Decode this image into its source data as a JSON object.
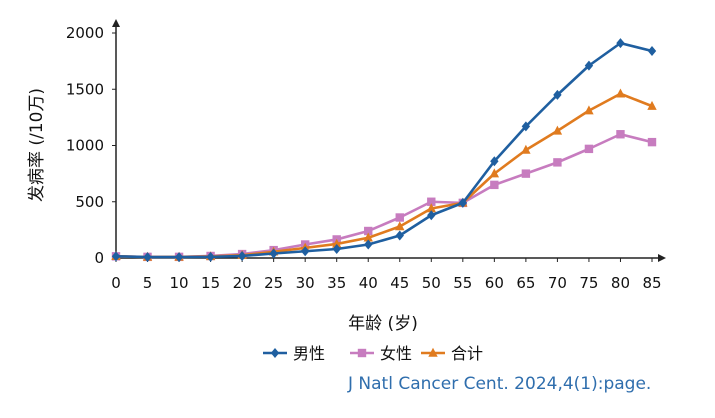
{
  "chart_data": {
    "type": "line",
    "x": [
      0,
      5,
      10,
      15,
      20,
      25,
      30,
      35,
      40,
      45,
      50,
      55,
      60,
      65,
      70,
      75,
      80,
      85
    ],
    "xlabel": "年龄 (岁)",
    "ylabel": "发病率 (/10万)",
    "ylim": [
      0,
      2000
    ],
    "yticks": [
      0,
      500,
      1000,
      1500,
      2000
    ],
    "grid": false,
    "legend_position": "bottom",
    "series": [
      {
        "name": "男性",
        "color": "#1f5fa0",
        "marker": "diamond",
        "values": [
          15,
          8,
          8,
          10,
          18,
          40,
          60,
          80,
          120,
          200,
          380,
          490,
          860,
          1170,
          1450,
          1710,
          1910,
          1840
        ]
      },
      {
        "name": "女性",
        "color": "#c77cbf",
        "marker": "square",
        "values": [
          15,
          10,
          10,
          18,
          35,
          70,
          120,
          165,
          240,
          360,
          500,
          490,
          650,
          750,
          850,
          970,
          1100,
          1030
        ]
      },
      {
        "name": "合计",
        "color": "#e07b1f",
        "marker": "triangle",
        "values": [
          15,
          9,
          9,
          14,
          25,
          55,
          90,
          125,
          180,
          280,
          440,
          490,
          750,
          960,
          1130,
          1310,
          1460,
          1350
        ]
      }
    ]
  },
  "citation": "J Natl Cancer Cent. 2024,4(1):page."
}
